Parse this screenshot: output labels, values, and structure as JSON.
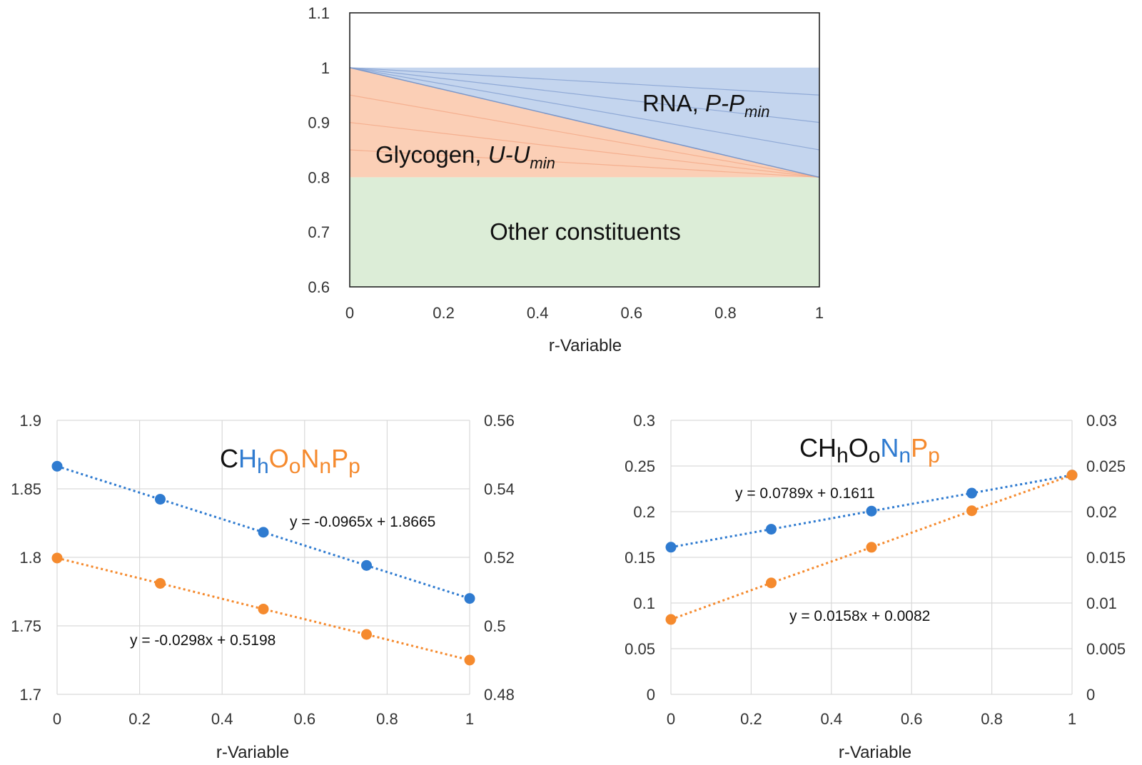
{
  "colors": {
    "blue": "#2f7bd0",
    "orange": "#f58a2e",
    "rna_fill": "#c4d5ee",
    "glycogen_fill": "#fbcfb6",
    "other_fill": "#dcedd7",
    "formula_black": "#111111"
  },
  "chart_data": [
    {
      "id": "composition",
      "type": "area",
      "xlabel": "r-Variable",
      "ylabel": "",
      "xlim": [
        0,
        1
      ],
      "ylim": [
        0.6,
        1.1
      ],
      "xticks": [
        "0",
        "0.2",
        "0.4",
        "0.6",
        "0.8",
        "1"
      ],
      "yticks": [
        "0.6",
        "0.7",
        "0.8",
        "0.9",
        "1",
        "1.1"
      ],
      "regions": [
        {
          "name": "Other constituents",
          "lower": [
            [
              0,
              0.6
            ],
            [
              1,
              0.6
            ]
          ],
          "upper": [
            [
              0,
              0.8
            ],
            [
              1,
              0.8
            ]
          ]
        },
        {
          "name": "Glycogen",
          "lower": [
            [
              0,
              0.8
            ],
            [
              1,
              0.8
            ]
          ],
          "upper": [
            [
              0,
              1.0
            ],
            [
              1,
              0.8
            ]
          ]
        },
        {
          "name": "RNA",
          "lower": [
            [
              0,
              1.0
            ],
            [
              1,
              0.8
            ]
          ],
          "upper": [
            [
              0,
              1.0
            ],
            [
              1,
              1.0
            ]
          ]
        }
      ],
      "fan_lines_rna_end_y": [
        0.95,
        0.9,
        0.85
      ],
      "fan_lines_glycogen_start_y": [
        0.95,
        0.9,
        0.85
      ],
      "labels": {
        "rna_main": "RNA, ",
        "rna_italic": "P-P",
        "rna_sub": "min",
        "glycogen_main": "Glycogen, ",
        "glycogen_italic": "U-U",
        "glycogen_sub": "min",
        "other": "Other constituents"
      }
    },
    {
      "id": "h_and_o",
      "type": "scatter",
      "xlabel": "r-Variable",
      "xlim": [
        0,
        1
      ],
      "ylim_left": [
        1.7,
        1.9
      ],
      "ylim_right": [
        0.48,
        0.56
      ],
      "xticks": [
        "0",
        "0.2",
        "0.4",
        "0.6",
        "0.8",
        "1"
      ],
      "yticks_left": [
        "1.7",
        "1.75",
        "1.8",
        "1.85",
        "1.9"
      ],
      "yticks_right": [
        "0.48",
        "0.5",
        "0.52",
        "0.54",
        "0.56"
      ],
      "formula": {
        "c": "C",
        "h": "H",
        "h_sub": "h",
        "o": "O",
        "o_sub": "o",
        "n": "N",
        "n_sub": "n",
        "p": "P",
        "p_sub": "p"
      },
      "series": [
        {
          "name": "h",
          "axis": "left",
          "color": "blue",
          "x": [
            0,
            0.25,
            0.5,
            0.75,
            1
          ],
          "y": [
            1.8665,
            1.8424,
            1.8183,
            1.7941,
            1.77
          ],
          "trend": "y = -0.0965x + 1.8665"
        },
        {
          "name": "o",
          "axis": "right",
          "color": "orange",
          "x": [
            0,
            0.25,
            0.5,
            0.75,
            1
          ],
          "y": [
            0.5198,
            0.5124,
            0.5049,
            0.4975,
            0.49
          ],
          "trend": "y = -0.0298x + 0.5198"
        }
      ]
    },
    {
      "id": "n_and_p",
      "type": "scatter",
      "xlabel": "r-Variable",
      "xlim": [
        0,
        1
      ],
      "ylim_left": [
        0,
        0.3
      ],
      "ylim_right": [
        0,
        0.03
      ],
      "xticks": [
        "0",
        "0.2",
        "0.4",
        "0.6",
        "0.8",
        "1"
      ],
      "yticks_left": [
        "0",
        "0.05",
        "0.1",
        "0.15",
        "0.2",
        "0.25",
        "0.3"
      ],
      "yticks_right": [
        "0",
        "0.005",
        "0.01",
        "0.015",
        "0.02",
        "0.025",
        "0.03"
      ],
      "formula": {
        "c": "C",
        "h": "H",
        "h_sub": "h",
        "o": "O",
        "o_sub": "o",
        "n": "N",
        "n_sub": "n",
        "p": "P",
        "p_sub": "p"
      },
      "series": [
        {
          "name": "n",
          "axis": "left",
          "color": "blue",
          "x": [
            0,
            0.25,
            0.5,
            0.75,
            1
          ],
          "y": [
            0.1611,
            0.1808,
            0.2006,
            0.2203,
            0.24
          ],
          "trend": "y = 0.0789x + 0.1611"
        },
        {
          "name": "p",
          "axis": "right",
          "color": "orange",
          "x": [
            0,
            0.25,
            0.5,
            0.75,
            1
          ],
          "y": [
            0.0082,
            0.0122,
            0.0161,
            0.0201,
            0.024
          ],
          "trend": "y = 0.0158x + 0.0082"
        }
      ]
    }
  ]
}
